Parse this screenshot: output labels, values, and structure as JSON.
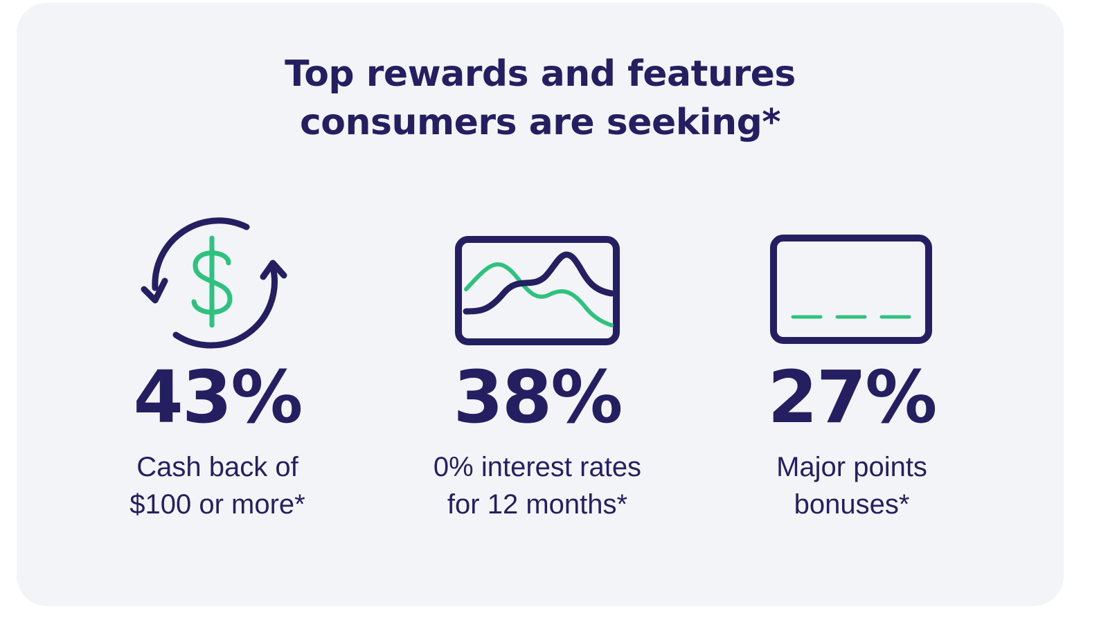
{
  "title": {
    "line1": "Top rewards and features",
    "line2": "consumers are seeking*"
  },
  "colors": {
    "navy": "#231f60",
    "green": "#2ec27e",
    "background": "#f3f4f7"
  },
  "stats": [
    {
      "icon": "cash-back-cycle-icon",
      "value": "43%",
      "label_line1": "Cash back of",
      "label_line2": "$100 or more*"
    },
    {
      "icon": "interest-chart-icon",
      "value": "38%",
      "label_line1": "0% interest rates",
      "label_line2": "for 12 months*"
    },
    {
      "icon": "credit-card-icon",
      "value": "27%",
      "label_line1": "Major points",
      "label_line2": "bonuses*"
    }
  ]
}
